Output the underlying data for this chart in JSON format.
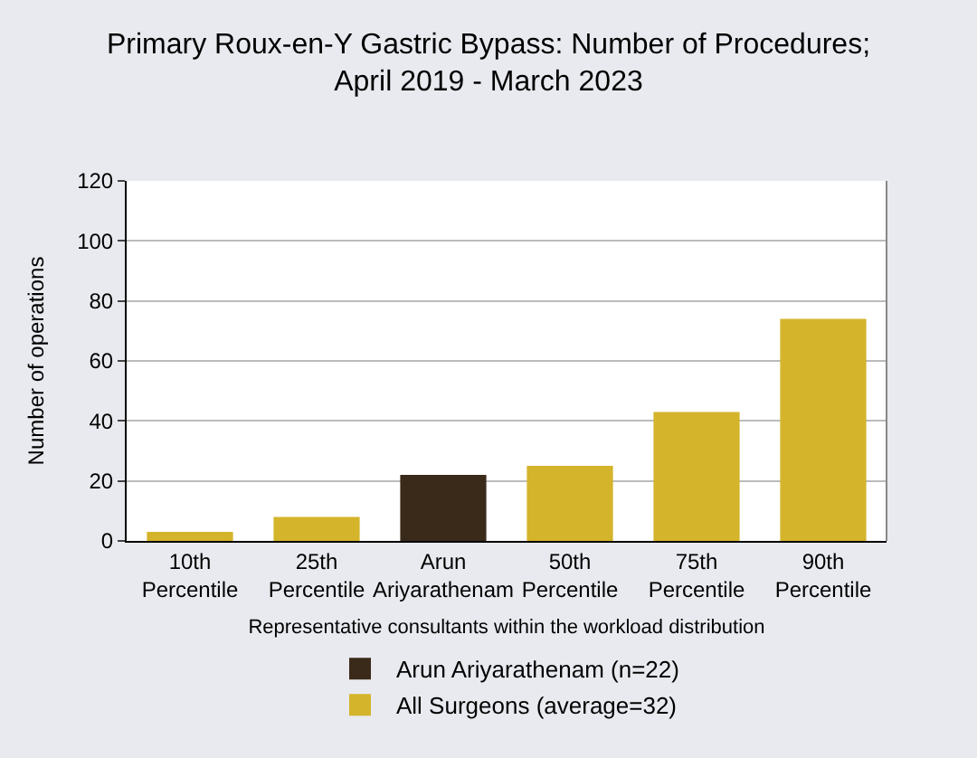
{
  "chart_data": {
    "type": "bar",
    "title": "Primary Roux-en-Y Gastric Bypass: Number of Procedures; April 2019 - March 2023",
    "categories": [
      "10th Percentile",
      "25th Percentile",
      "Arun Ariyarathenam",
      "50th Percentile",
      "75th Percentile",
      "90th Percentile"
    ],
    "series": [
      {
        "name": "Arun Ariyarathenam (n=22)",
        "color": "#3a2a1a",
        "values": [
          null,
          null,
          22,
          null,
          null,
          null
        ]
      },
      {
        "name": "All Surgeons (average=32)",
        "color": "#d4b42a",
        "values": [
          3,
          8,
          null,
          25,
          43,
          74
        ]
      }
    ],
    "xlabel": "Representative consultants within the workload distribution",
    "ylabel": "Number of operations",
    "ylim": [
      0,
      120
    ],
    "yticks": [
      0,
      20,
      40,
      60,
      80,
      100,
      120
    ],
    "grid": "y",
    "legend": "bottom"
  }
}
